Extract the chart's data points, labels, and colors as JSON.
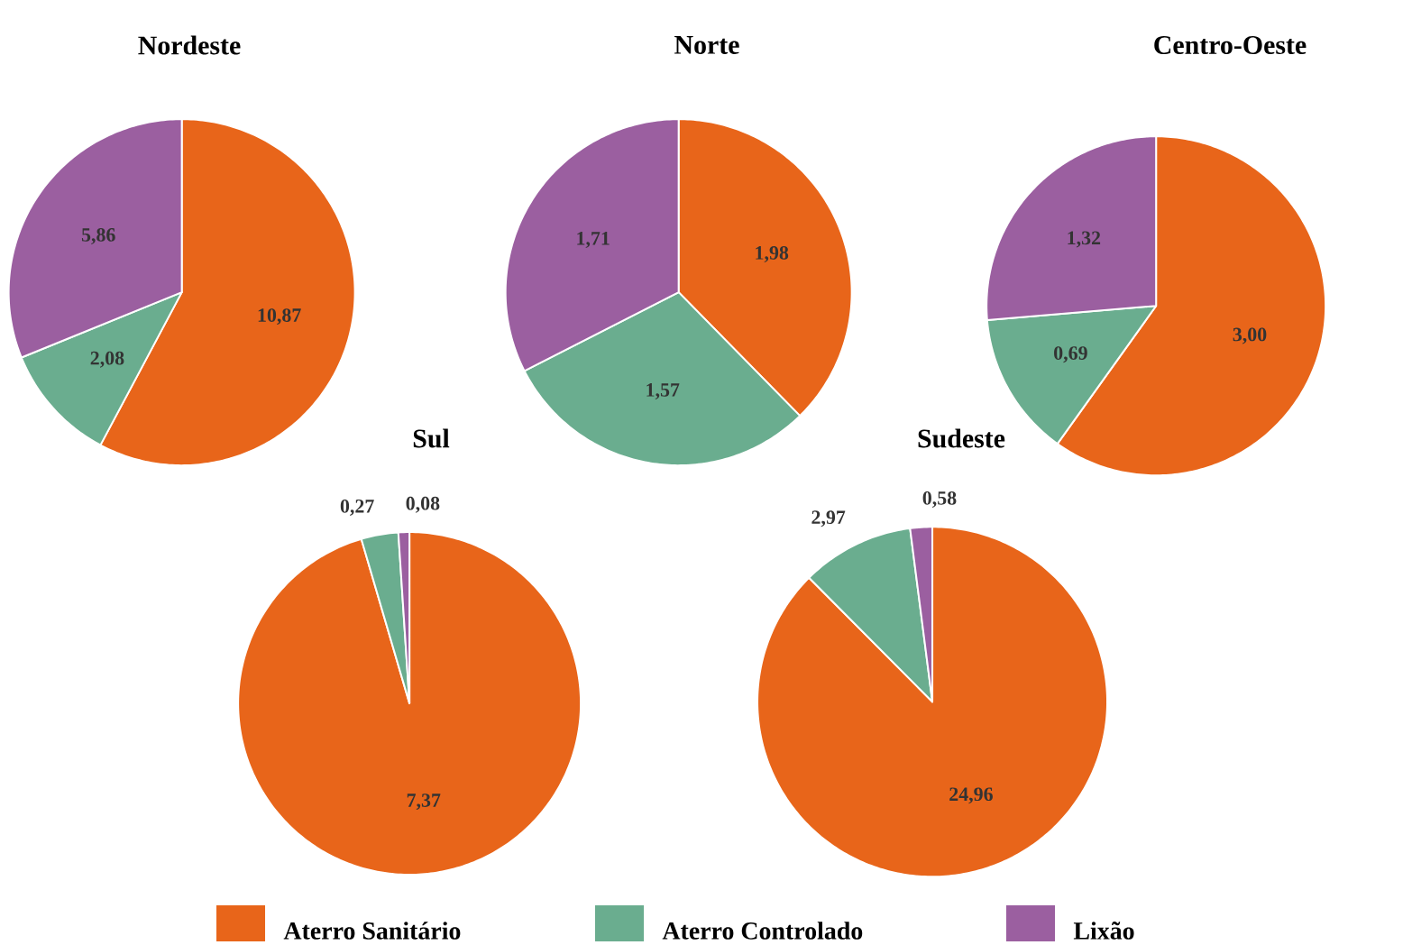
{
  "chart_data": [
    {
      "type": "pie",
      "title": "Nordeste",
      "categories": [
        "Aterro Sanitário",
        "Aterro Controlado",
        "Lixão"
      ],
      "values": [
        10.87,
        2.08,
        5.86
      ],
      "value_labels": [
        "10,87",
        "2,08",
        "5,86"
      ],
      "colors": [
        "#e8651a",
        "#6aad8f",
        "#9b5fa0"
      ],
      "legend": "bottom"
    },
    {
      "type": "pie",
      "title": "Norte",
      "values": [
        1.98,
        1.57,
        1.71
      ],
      "value_labels": [
        "1,98",
        "1,57",
        "1,71"
      ],
      "colors": [
        "#e8651a",
        "#6aad8f",
        "#9b5fa0"
      ]
    },
    {
      "type": "pie",
      "title": "Centro-Oeste",
      "values": [
        3.0,
        0.69,
        1.32
      ],
      "value_labels": [
        "3,00",
        "0,69",
        "1,32"
      ],
      "colors": [
        "#e8651a",
        "#6aad8f",
        "#9b5fa0"
      ]
    },
    {
      "type": "pie",
      "title": "Sul",
      "values": [
        7.37,
        0.27,
        0.08
      ],
      "value_labels": [
        "7,37",
        "0,27",
        "0,08"
      ],
      "colors": [
        "#e8651a",
        "#6aad8f",
        "#9b5fa0"
      ]
    },
    {
      "type": "pie",
      "title": "Sudeste",
      "values": [
        24.96,
        2.97,
        0.58
      ],
      "value_labels": [
        "24,96",
        "2,97",
        "0,58"
      ],
      "colors": [
        "#e8651a",
        "#6aad8f",
        "#9b5fa0"
      ]
    }
  ]
}
